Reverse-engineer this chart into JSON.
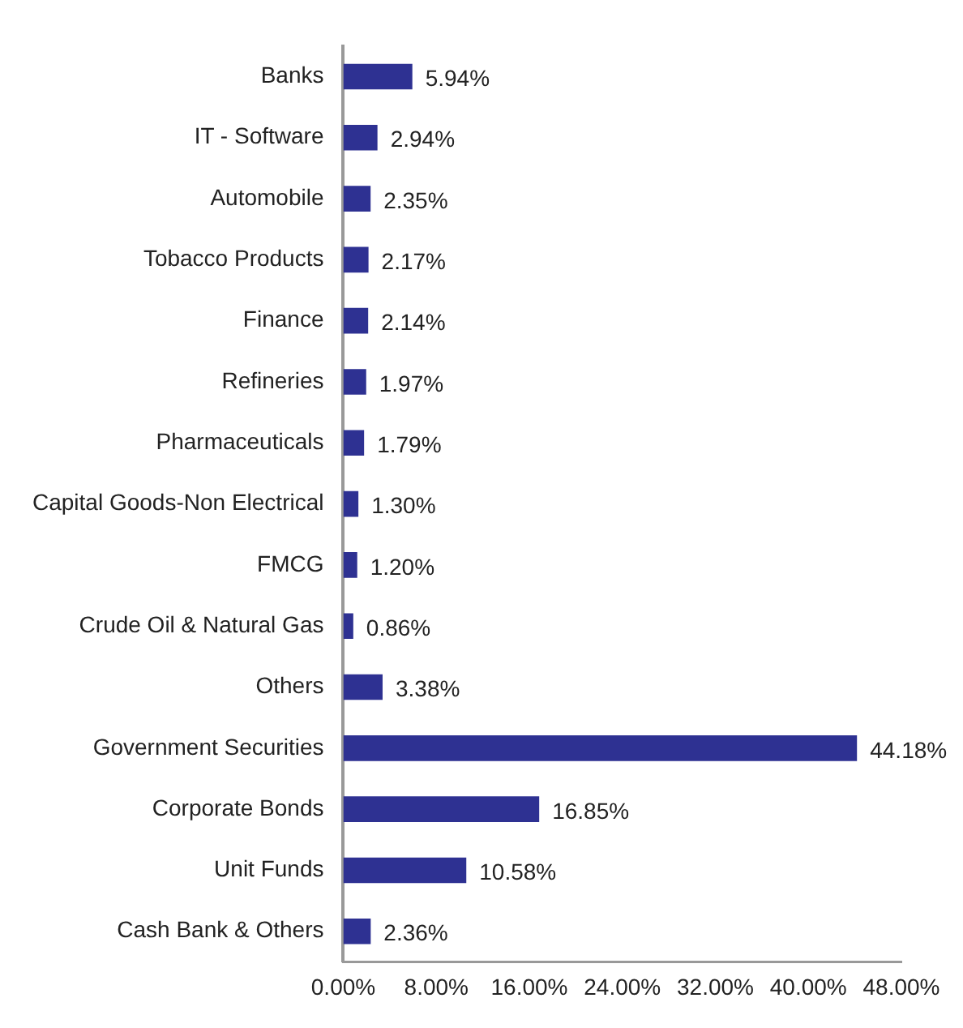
{
  "chart_data": {
    "type": "bar",
    "orientation": "horizontal",
    "categories": [
      "Banks",
      "IT - Software",
      "Automobile",
      "Tobacco Products",
      "Finance",
      "Refineries",
      "Pharmaceuticals",
      "Capital Goods-Non Electrical",
      "FMCG",
      "Crude Oil & Natural Gas",
      "Others",
      "Government Securities",
      "Corporate Bonds",
      "Unit Funds",
      "Cash Bank & Others"
    ],
    "values": [
      5.94,
      2.94,
      2.35,
      2.17,
      2.14,
      1.97,
      1.79,
      1.3,
      1.2,
      0.86,
      3.38,
      44.18,
      16.85,
      10.58,
      2.36
    ],
    "value_labels": [
      "5.94%",
      "2.94%",
      "2.35%",
      "2.17%",
      "2.14%",
      "1.97%",
      "1.79%",
      "1.30%",
      "1.20%",
      "0.86%",
      "3.38%",
      "44.18%",
      "16.85%",
      "10.58%",
      "2.36%"
    ],
    "color": "#2e3192",
    "xlim": [
      0,
      48
    ],
    "xticks": [
      {
        "value": 0,
        "label": "0.00%"
      },
      {
        "value": 8,
        "label": "8.00%"
      },
      {
        "value": 16,
        "label": "16.00%"
      },
      {
        "value": 24,
        "label": "24.00%"
      },
      {
        "value": 32,
        "label": "32.00%"
      },
      {
        "value": 40,
        "label": "40.00%"
      },
      {
        "value": 48,
        "label": "48.00%"
      }
    ],
    "grid": false,
    "legend": false
  }
}
